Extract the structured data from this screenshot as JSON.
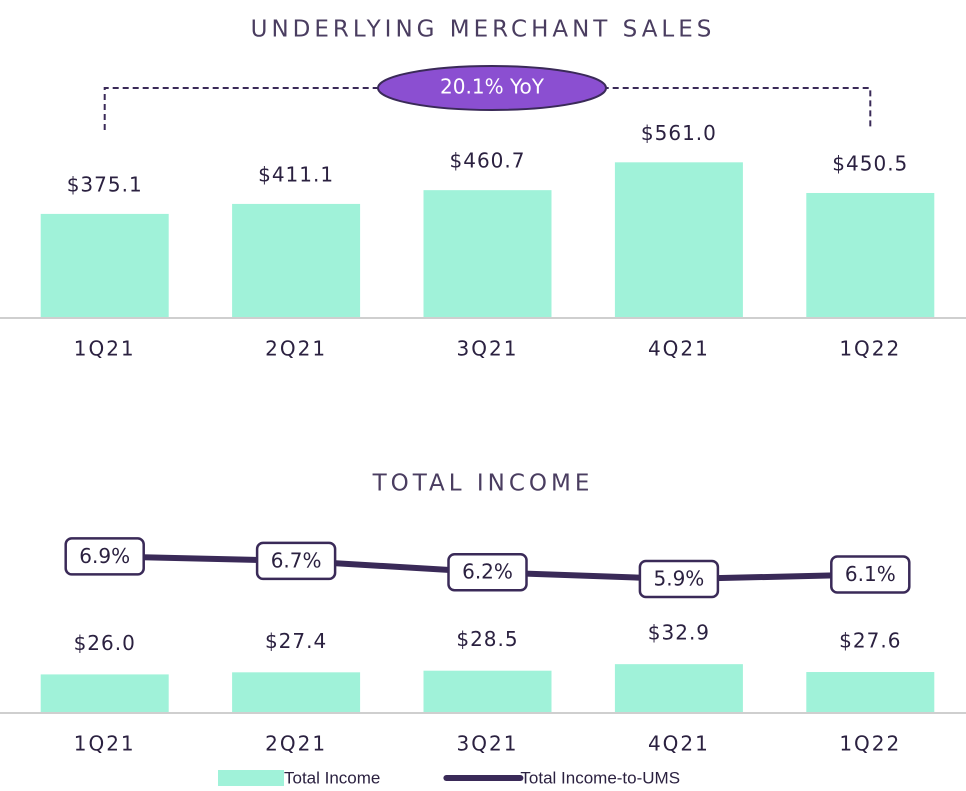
{
  "chart_data": [
    {
      "type": "bar",
      "title": "UNDERLYING MERCHANT SALES",
      "categories": [
        "1Q21",
        "2Q21",
        "3Q21",
        "4Q21",
        "1Q22"
      ],
      "values": [
        375.1,
        411.1,
        460.7,
        561.0,
        450.5
      ],
      "value_labels": [
        "$375.1",
        "$411.1",
        "$460.7",
        "$561.0",
        "$450.5"
      ],
      "color": "#a0f2d9",
      "ylim": [
        0,
        800
      ],
      "annotation": "20.1% YoY"
    },
    {
      "type": "combo",
      "title": "TOTAL INCOME",
      "categories": [
        "1Q21",
        "2Q21",
        "3Q21",
        "4Q21",
        "1Q22"
      ],
      "series": [
        {
          "name": "Total Income",
          "color": "#a0f2d9",
          "values": [
            26.0,
            27.4,
            28.5,
            32.9,
            27.6
          ],
          "value_labels": [
            "$26.0",
            "$27.4",
            "$28.5",
            "$32.9",
            "$27.6"
          ]
        },
        {
          "name": "Total Income-to-UMS",
          "color": "#3a2a58",
          "axis": "y2",
          "values": [
            6.9,
            6.7,
            6.2,
            5.9,
            6.1
          ],
          "value_labels": [
            "6.9%",
            "6.7%",
            "6.2%",
            "5.9%",
            "6.1%"
          ]
        }
      ],
      "ylim": [
        0,
        130
      ],
      "y2lim": [
        0,
        8.5
      ]
    }
  ]
}
